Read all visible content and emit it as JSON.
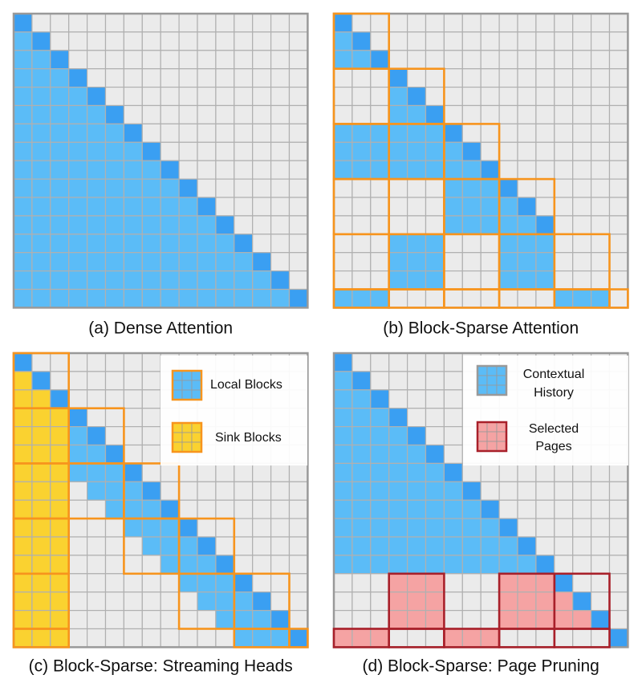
{
  "panels": [
    {
      "caption": "(a) Dense Attention"
    },
    {
      "caption": "(b) Block-Sparse Attention"
    },
    {
      "caption": "(c) Block-Sparse: Streaming Heads",
      "legend": [
        {
          "lines": [
            "Local Blocks"
          ]
        },
        {
          "lines": [
            "Sink Blocks"
          ]
        }
      ]
    },
    {
      "caption": "(d) Block-Sparse: Page Pruning",
      "legend": [
        {
          "lines": [
            "Contextual",
            "History"
          ]
        },
        {
          "lines": [
            "Selected",
            "Pages"
          ]
        }
      ]
    }
  ]
}
